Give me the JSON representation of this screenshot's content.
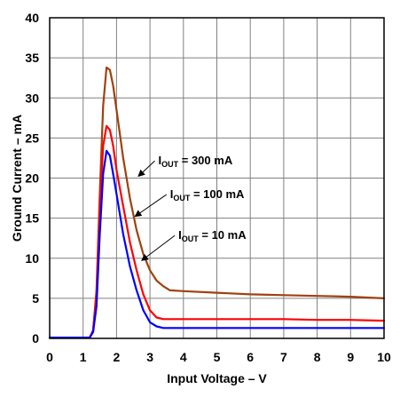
{
  "chart_data": {
    "type": "line",
    "title": "",
    "xlabel": "Input Voltage – V",
    "ylabel": "Ground Current – mA",
    "xlim": [
      0,
      10
    ],
    "ylim": [
      0,
      40
    ],
    "xticks": [
      "0",
      "1",
      "2",
      "3",
      "4",
      "5",
      "6",
      "7",
      "8",
      "9",
      "10"
    ],
    "yticks": [
      "0",
      "5",
      "10",
      "15",
      "20",
      "25",
      "30",
      "35",
      "40"
    ],
    "grid": true,
    "legend": "none",
    "series": [
      {
        "name": "IOUT = 300 mA",
        "color": "#a0410d",
        "x": [
          0,
          1.2,
          1.3,
          1.4,
          1.5,
          1.6,
          1.7,
          1.8,
          1.9,
          2.0,
          2.2,
          2.4,
          2.6,
          2.8,
          3.0,
          3.2,
          3.4,
          3.6,
          4.0,
          5.0,
          6.0,
          7.0,
          8.0,
          9.0,
          10.0
        ],
        "y": [
          0.1,
          0.1,
          1.0,
          6.0,
          18.0,
          29.0,
          33.8,
          33.5,
          31.5,
          28.5,
          22.5,
          17.5,
          13.5,
          10.5,
          8.5,
          7.2,
          6.5,
          6.0,
          5.9,
          5.7,
          5.5,
          5.4,
          5.3,
          5.2,
          5.0
        ]
      },
      {
        "name": "IOUT = 100 mA",
        "color": "#ff0000",
        "x": [
          0,
          1.2,
          1.3,
          1.4,
          1.5,
          1.6,
          1.7,
          1.8,
          1.9,
          2.0,
          2.2,
          2.4,
          2.6,
          2.8,
          3.0,
          3.2,
          3.4,
          4.0,
          5.0,
          6.0,
          7.0,
          8.0,
          9.0,
          10.0
        ],
        "y": [
          0.1,
          0.1,
          1.0,
          5.5,
          16.0,
          24.0,
          26.5,
          26.0,
          24.0,
          21.0,
          16.5,
          12.0,
          8.5,
          5.5,
          3.5,
          2.6,
          2.4,
          2.4,
          2.4,
          2.4,
          2.4,
          2.3,
          2.3,
          2.2
        ]
      },
      {
        "name": "IOUT = 10 mA",
        "color": "#0000ff",
        "x": [
          0,
          1.2,
          1.3,
          1.4,
          1.5,
          1.6,
          1.7,
          1.8,
          1.9,
          2.0,
          2.2,
          2.4,
          2.6,
          2.8,
          3.0,
          3.2,
          3.4,
          3.6,
          4.0,
          5.0,
          6.0,
          7.0,
          8.0,
          9.0,
          10.0
        ],
        "y": [
          0.1,
          0.1,
          0.8,
          4.0,
          13.0,
          20.5,
          23.4,
          22.8,
          20.5,
          18.0,
          13.0,
          9.0,
          6.0,
          3.5,
          2.0,
          1.5,
          1.3,
          1.3,
          1.3,
          1.3,
          1.3,
          1.3,
          1.3,
          1.3,
          1.3
        ]
      }
    ],
    "annotations": [
      {
        "main": "I",
        "sub": "OUT",
        "rest": " = 300 mA",
        "target_x": 2.6,
        "target_y": 20.0,
        "series": "IOUT = 300 mA",
        "text_x": 3.25,
        "text_y": 21.7
      },
      {
        "main": "I",
        "sub": "OUT",
        "rest": " = 100 mA",
        "target_x": 2.5,
        "target_y": 15.0,
        "series": "IOUT = 100 mA",
        "text_x": 3.6,
        "text_y": 17.5
      },
      {
        "main": "I",
        "sub": "OUT",
        "rest": " = 10 mA",
        "target_x": 2.7,
        "target_y": 9.5,
        "series": "IOUT = 10 mA",
        "text_x": 3.85,
        "text_y": 12.4
      }
    ]
  }
}
